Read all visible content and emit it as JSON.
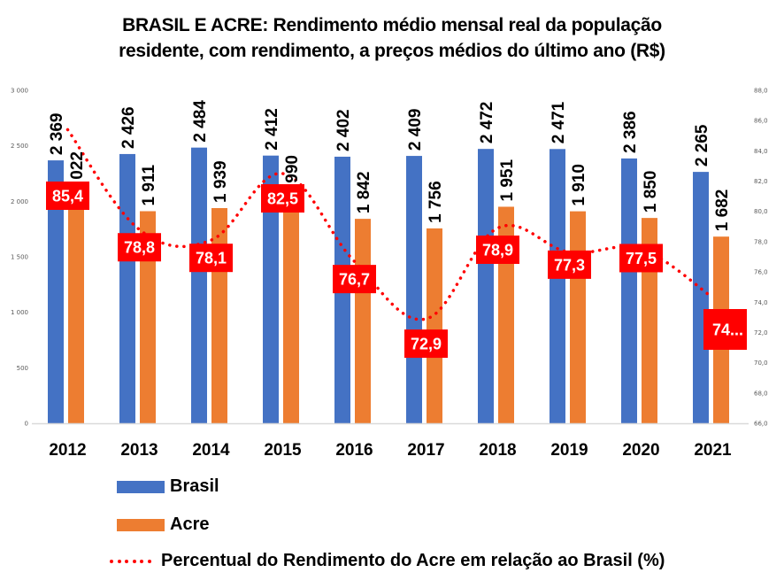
{
  "chart_data": {
    "type": "bar",
    "title": "BRASIL E ACRE: Rendimento médio mensal real da população residente, com rendimento, a preços médios do último ano (R$)",
    "title_lines": [
      "BRASIL E ACRE: Rendimento médio mensal real da população",
      "residente, com rendimento, a preços médios do último ano (R$)"
    ],
    "categories": [
      "2012",
      "2013",
      "2014",
      "2015",
      "2016",
      "2017",
      "2018",
      "2019",
      "2020",
      "2021"
    ],
    "series": [
      {
        "name": "Brasil",
        "type": "bar",
        "axis": "left",
        "color": "#4472C4",
        "values": [
          2369,
          2426,
          2484,
          2412,
          2402,
          2409,
          2472,
          2471,
          2386,
          2265
        ],
        "labels": [
          "2 369",
          "2 426",
          "2 484",
          "2 412",
          "2 402",
          "2 409",
          "2 472",
          "2 471",
          "2 386",
          "2 265"
        ]
      },
      {
        "name": "Acre",
        "type": "bar",
        "axis": "left",
        "color": "#ED7D31",
        "values": [
          2022,
          1911,
          1939,
          1990,
          1842,
          1756,
          1951,
          1910,
          1850,
          1682
        ],
        "labels": [
          "2 022",
          "1 911",
          "1 939",
          "1 990",
          "1 842",
          "1 756",
          "1 951",
          "1 910",
          "1 850",
          "1 682"
        ]
      },
      {
        "name": "Percentual do Rendimento do Acre em relação ao Brasil (%)",
        "type": "line",
        "style": "dotted",
        "axis": "right",
        "color": "#FF0000",
        "values": [
          85.4,
          78.8,
          78.1,
          82.5,
          76.7,
          72.9,
          78.9,
          77.3,
          77.5,
          74.3
        ],
        "labels": [
          "85,4",
          "78,8",
          "78,1",
          "82,5",
          "76,7",
          "72,9",
          "78,9",
          "77,3",
          "77,5",
          "74..."
        ]
      }
    ],
    "y_left": {
      "ylim": [
        0,
        3000
      ],
      "ticks": [
        0,
        500,
        1000,
        1500,
        2000,
        2500,
        3000
      ],
      "tick_labels": [
        "0",
        "500",
        "1 000",
        "1 500",
        "2 000",
        "2 500",
        "3 000"
      ]
    },
    "y_right": {
      "ylim": [
        66,
        88
      ],
      "ticks": [
        66,
        68,
        70,
        72,
        74,
        76,
        78,
        80,
        82,
        84,
        86,
        88
      ],
      "tick_labels": [
        "66,0",
        "68,0",
        "70,0",
        "72,0",
        "74,0",
        "76,0",
        "78,0",
        "80,0",
        "82,0",
        "84,0",
        "86,0",
        "88,0"
      ]
    },
    "xlabel": "",
    "ylabel": "",
    "grid": false,
    "legend_position": "bottom-left",
    "label_box_color": "#FF0000",
    "axis_line_color": "#D9D9D9"
  }
}
